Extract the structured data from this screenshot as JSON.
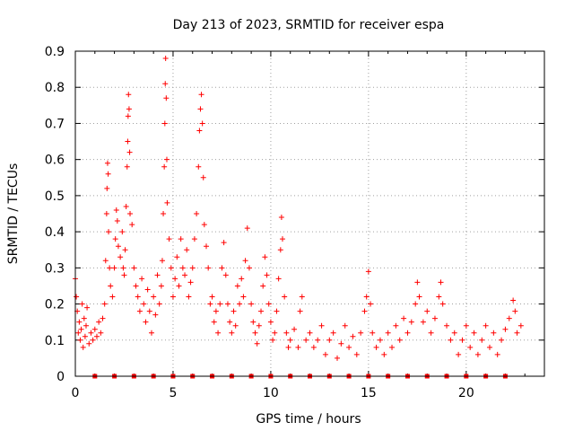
{
  "chart_data": {
    "type": "scatter",
    "title": "Day 213 of 2023, SRMTID for receiver espa",
    "xlabel": "GPS time / hours",
    "ylabel": "SRMTID / TECUs",
    "xlim": [
      0,
      24
    ],
    "ylim": [
      0,
      0.9
    ],
    "xticks": [
      0,
      5,
      10,
      15,
      20
    ],
    "xtick_labels": [
      "0",
      "5",
      "10",
      "15",
      "20"
    ],
    "yticks": [
      0,
      0.1,
      0.2,
      0.3,
      0.4,
      0.5,
      0.6,
      0.7,
      0.8,
      0.9
    ],
    "ytick_labels": [
      "0",
      "0.1",
      "0.2",
      "0.3",
      "0.4",
      "0.5",
      "0.6",
      "0.7",
      "0.8",
      "0.9"
    ],
    "grid": true,
    "marker": "plus",
    "color": "#ff0000",
    "series": [
      {
        "name": "SRMTID",
        "points": [
          [
            0.0,
            0.27
          ],
          [
            0.05,
            0.22
          ],
          [
            0.1,
            0.18
          ],
          [
            0.15,
            0.12
          ],
          [
            0.2,
            0.15
          ],
          [
            0.25,
            0.1
          ],
          [
            0.3,
            0.13
          ],
          [
            0.35,
            0.2
          ],
          [
            0.4,
            0.08
          ],
          [
            0.45,
            0.16
          ],
          [
            0.5,
            0.11
          ],
          [
            0.55,
            0.14
          ],
          [
            0.6,
            0.19
          ],
          [
            0.7,
            0.09
          ],
          [
            0.8,
            0.12
          ],
          [
            0.9,
            0.1
          ],
          [
            1.0,
            0.13
          ],
          [
            1.1,
            0.11
          ],
          [
            1.2,
            0.15
          ],
          [
            1.3,
            0.12
          ],
          [
            1.4,
            0.16
          ],
          [
            1.5,
            0.2
          ],
          [
            1.55,
            0.32
          ],
          [
            1.6,
            0.45
          ],
          [
            1.62,
            0.52
          ],
          [
            1.65,
            0.59
          ],
          [
            1.68,
            0.56
          ],
          [
            1.7,
            0.4
          ],
          [
            1.75,
            0.3
          ],
          [
            1.8,
            0.25
          ],
          [
            1.9,
            0.22
          ],
          [
            2.0,
            0.3
          ],
          [
            2.05,
            0.38
          ],
          [
            2.1,
            0.46
          ],
          [
            2.15,
            0.43
          ],
          [
            2.2,
            0.36
          ],
          [
            2.3,
            0.33
          ],
          [
            2.4,
            0.4
          ],
          [
            2.45,
            0.3
          ],
          [
            2.5,
            0.28
          ],
          [
            2.55,
            0.35
          ],
          [
            2.6,
            0.47
          ],
          [
            2.65,
            0.58
          ],
          [
            2.68,
            0.65
          ],
          [
            2.7,
            0.72
          ],
          [
            2.72,
            0.78
          ],
          [
            2.75,
            0.74
          ],
          [
            2.78,
            0.62
          ],
          [
            2.8,
            0.45
          ],
          [
            2.9,
            0.42
          ],
          [
            3.0,
            0.3
          ],
          [
            3.1,
            0.25
          ],
          [
            3.2,
            0.22
          ],
          [
            3.3,
            0.18
          ],
          [
            3.4,
            0.27
          ],
          [
            3.5,
            0.2
          ],
          [
            3.6,
            0.15
          ],
          [
            3.7,
            0.24
          ],
          [
            3.8,
            0.18
          ],
          [
            3.9,
            0.12
          ],
          [
            4.0,
            0.22
          ],
          [
            4.1,
            0.17
          ],
          [
            4.2,
            0.28
          ],
          [
            4.3,
            0.2
          ],
          [
            4.4,
            0.25
          ],
          [
            4.45,
            0.32
          ],
          [
            4.5,
            0.45
          ],
          [
            4.55,
            0.58
          ],
          [
            4.58,
            0.7
          ],
          [
            4.6,
            0.81
          ],
          [
            4.62,
            0.88
          ],
          [
            4.65,
            0.77
          ],
          [
            4.68,
            0.6
          ],
          [
            4.7,
            0.48
          ],
          [
            4.8,
            0.38
          ],
          [
            4.9,
            0.3
          ],
          [
            5.0,
            0.22
          ],
          [
            5.1,
            0.27
          ],
          [
            5.2,
            0.33
          ],
          [
            5.3,
            0.25
          ],
          [
            5.4,
            0.38
          ],
          [
            5.5,
            0.3
          ],
          [
            5.6,
            0.28
          ],
          [
            5.7,
            0.35
          ],
          [
            5.8,
            0.22
          ],
          [
            5.9,
            0.26
          ],
          [
            6.0,
            0.3
          ],
          [
            6.1,
            0.38
          ],
          [
            6.2,
            0.45
          ],
          [
            6.3,
            0.58
          ],
          [
            6.35,
            0.68
          ],
          [
            6.4,
            0.74
          ],
          [
            6.45,
            0.78
          ],
          [
            6.5,
            0.7
          ],
          [
            6.55,
            0.55
          ],
          [
            6.6,
            0.42
          ],
          [
            6.7,
            0.36
          ],
          [
            6.8,
            0.3
          ],
          [
            6.9,
            0.2
          ],
          [
            7.0,
            0.22
          ],
          [
            7.1,
            0.15
          ],
          [
            7.2,
            0.18
          ],
          [
            7.3,
            0.12
          ],
          [
            7.4,
            0.2
          ],
          [
            7.5,
            0.3
          ],
          [
            7.6,
            0.37
          ],
          [
            7.7,
            0.28
          ],
          [
            7.8,
            0.2
          ],
          [
            7.9,
            0.15
          ],
          [
            8.0,
            0.12
          ],
          [
            8.1,
            0.18
          ],
          [
            8.2,
            0.14
          ],
          [
            8.3,
            0.25
          ],
          [
            8.4,
            0.2
          ],
          [
            8.5,
            0.27
          ],
          [
            8.6,
            0.22
          ],
          [
            8.7,
            0.32
          ],
          [
            8.8,
            0.41
          ],
          [
            8.9,
            0.3
          ],
          [
            9.0,
            0.2
          ],
          [
            9.1,
            0.15
          ],
          [
            9.2,
            0.12
          ],
          [
            9.3,
            0.09
          ],
          [
            9.4,
            0.14
          ],
          [
            9.5,
            0.18
          ],
          [
            9.6,
            0.25
          ],
          [
            9.7,
            0.33
          ],
          [
            9.8,
            0.28
          ],
          [
            9.9,
            0.2
          ],
          [
            10.0,
            0.15
          ],
          [
            10.1,
            0.1
          ],
          [
            10.2,
            0.12
          ],
          [
            10.3,
            0.18
          ],
          [
            10.4,
            0.27
          ],
          [
            10.5,
            0.35
          ],
          [
            10.55,
            0.44
          ],
          [
            10.6,
            0.38
          ],
          [
            10.7,
            0.22
          ],
          [
            10.8,
            0.12
          ],
          [
            10.9,
            0.08
          ],
          [
            11.0,
            0.1
          ],
          [
            11.2,
            0.13
          ],
          [
            11.4,
            0.08
          ],
          [
            11.5,
            0.18
          ],
          [
            11.6,
            0.22
          ],
          [
            11.8,
            0.1
          ],
          [
            12.0,
            0.12
          ],
          [
            12.2,
            0.08
          ],
          [
            12.4,
            0.1
          ],
          [
            12.6,
            0.14
          ],
          [
            12.8,
            0.06
          ],
          [
            13.0,
            0.1
          ],
          [
            13.2,
            0.12
          ],
          [
            13.4,
            0.05
          ],
          [
            13.6,
            0.09
          ],
          [
            13.8,
            0.14
          ],
          [
            14.0,
            0.08
          ],
          [
            14.2,
            0.11
          ],
          [
            14.4,
            0.06
          ],
          [
            14.6,
            0.12
          ],
          [
            14.8,
            0.18
          ],
          [
            14.9,
            0.22
          ],
          [
            15.0,
            0.29
          ],
          [
            15.1,
            0.2
          ],
          [
            15.2,
            0.12
          ],
          [
            15.4,
            0.08
          ],
          [
            15.6,
            0.1
          ],
          [
            15.8,
            0.06
          ],
          [
            16.0,
            0.12
          ],
          [
            16.2,
            0.08
          ],
          [
            16.4,
            0.14
          ],
          [
            16.6,
            0.1
          ],
          [
            16.8,
            0.16
          ],
          [
            17.0,
            0.12
          ],
          [
            17.2,
            0.15
          ],
          [
            17.4,
            0.2
          ],
          [
            17.5,
            0.26
          ],
          [
            17.6,
            0.22
          ],
          [
            17.8,
            0.15
          ],
          [
            18.0,
            0.18
          ],
          [
            18.2,
            0.12
          ],
          [
            18.4,
            0.16
          ],
          [
            18.6,
            0.22
          ],
          [
            18.7,
            0.26
          ],
          [
            18.8,
            0.2
          ],
          [
            19.0,
            0.14
          ],
          [
            19.2,
            0.1
          ],
          [
            19.4,
            0.12
          ],
          [
            19.6,
            0.06
          ],
          [
            19.8,
            0.1
          ],
          [
            20.0,
            0.14
          ],
          [
            20.2,
            0.08
          ],
          [
            20.4,
            0.12
          ],
          [
            20.6,
            0.06
          ],
          [
            20.8,
            0.1
          ],
          [
            21.0,
            0.14
          ],
          [
            21.2,
            0.08
          ],
          [
            21.4,
            0.12
          ],
          [
            21.6,
            0.06
          ],
          [
            21.8,
            0.1
          ],
          [
            22.0,
            0.13
          ],
          [
            22.2,
            0.16
          ],
          [
            22.4,
            0.21
          ],
          [
            22.5,
            0.18
          ],
          [
            22.6,
            0.12
          ],
          [
            22.8,
            0.14
          ]
        ]
      }
    ],
    "zero_markers_x": [
      1,
      2,
      3,
      4,
      5,
      6,
      7,
      8,
      9,
      10,
      11,
      12,
      13,
      14,
      15,
      16,
      17,
      18,
      19,
      20,
      21,
      22
    ]
  }
}
